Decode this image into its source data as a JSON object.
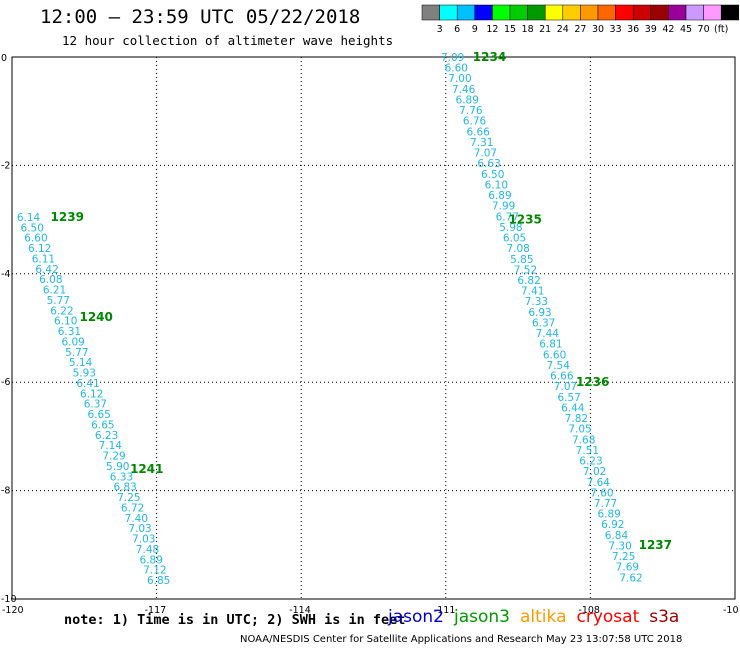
{
  "header": {
    "title": "12:00 – 23:59 UTC 05/22/2018",
    "subtitle": "12 hour collection of altimeter wave heights"
  },
  "color_scale": {
    "labels": [
      "3",
      "6",
      "9",
      "12",
      "15",
      "18",
      "21",
      "24",
      "27",
      "30",
      "33",
      "36",
      "39",
      "42",
      "45",
      "70",
      "(ft)"
    ],
    "colors": [
      "#808080",
      "#00ffff",
      "#00bfff",
      "#0000ff",
      "#00ff00",
      "#00cc00",
      "#009900",
      "#ffff00",
      "#ffcc00",
      "#ff9900",
      "#ff6600",
      "#ff0000",
      "#cc0000",
      "#990000",
      "#990099",
      "#cc99ff",
      "#ff99ff",
      "#000000"
    ]
  },
  "axes": {
    "x_ticks": [
      "-120",
      "-117",
      "-114",
      "-111",
      "-108",
      "-10"
    ],
    "y_ticks": [
      "0",
      "-2",
      "-4",
      "-6",
      "-8",
      "-10"
    ],
    "x_range": [
      -120,
      -105
    ],
    "y_range": [
      -10,
      0
    ]
  },
  "chart_data": {
    "type": "scatter",
    "track_labels": [
      {
        "text": "1234",
        "lon": -110.44,
        "lat": 0.0
      },
      {
        "text": "1235",
        "lon": -109.7,
        "lat": -3.0
      },
      {
        "text": "1236",
        "lon": -108.3,
        "lat": -6.0
      },
      {
        "text": "1237",
        "lon": -107.0,
        "lat": -9.0
      },
      {
        "text": "1239",
        "lon": -119.2,
        "lat": -2.95
      },
      {
        "text": "1240",
        "lon": -118.6,
        "lat": -4.8
      },
      {
        "text": "1241",
        "lon": -117.55,
        "lat": -7.6
      }
    ],
    "tracks": [
      {
        "lon_start": -111.1,
        "lat_start": 0.0,
        "lon_end": -107.4,
        "lat_end": -9.6,
        "values": [
          "7.09",
          "6.60",
          "7.00",
          "7.46",
          "6.89",
          "7.76",
          "6.76",
          "6.66",
          "7.31",
          "7.07",
          "6.63",
          "6.50",
          "6.10",
          "6.89",
          "7.99",
          "6.77",
          "5.98",
          "6.05",
          "7.08",
          "5.85",
          "7.52",
          "6.82",
          "7.41",
          "7.33",
          "6.93",
          "6.37",
          "7.44",
          "6.81",
          "6.60",
          "7.54",
          "6.66",
          "7.07",
          "6.57",
          "6.44",
          "7.82",
          "7.05",
          "7.68",
          "7.51",
          "6.23",
          "7.02",
          "7.64",
          "7.60",
          "7.77",
          "6.89",
          "6.92",
          "6.84",
          "7.30",
          "7.25",
          "7.69",
          "7.62"
        ]
      },
      {
        "lon_start": -119.9,
        "lat_start": -2.95,
        "lon_end": -117.2,
        "lat_end": -9.65,
        "values": [
          "6.14",
          "6.50",
          "6.60",
          "6.12",
          "6.11",
          "6.42",
          "6.08",
          "6.21",
          "5.77",
          "6.22",
          "6.10",
          "6.31",
          "6.09",
          "5.77",
          "5.14",
          "5.93",
          "6.41",
          "6.12",
          "6.37",
          "6.65",
          "6.65",
          "6.23",
          "7.14",
          "7.29",
          "5.90",
          "6.33",
          "6.83",
          "7.25",
          "6.72",
          "7.40",
          "7.03",
          "7.03",
          "7.48",
          "6.89",
          "7.12",
          "6.85"
        ]
      }
    ]
  },
  "footer": {
    "note": "note: 1) Time is in UTC; 2) SWH is in feet",
    "credit": "NOAA/NESDIS Center for Satellite Applications and Research   May 23 13:07:58 UTC 2018",
    "satellites": [
      {
        "name": "jason2",
        "color": "#0000cc"
      },
      {
        "name": "jason3",
        "color": "#009900"
      },
      {
        "name": "altika",
        "color": "#ff9900"
      },
      {
        "name": "cryosat",
        "color": "#ff0000"
      },
      {
        "name": "s3a",
        "color": "#990000"
      }
    ]
  },
  "style": {
    "value_color": "#22b8e0",
    "track_label_color": "#008800"
  }
}
